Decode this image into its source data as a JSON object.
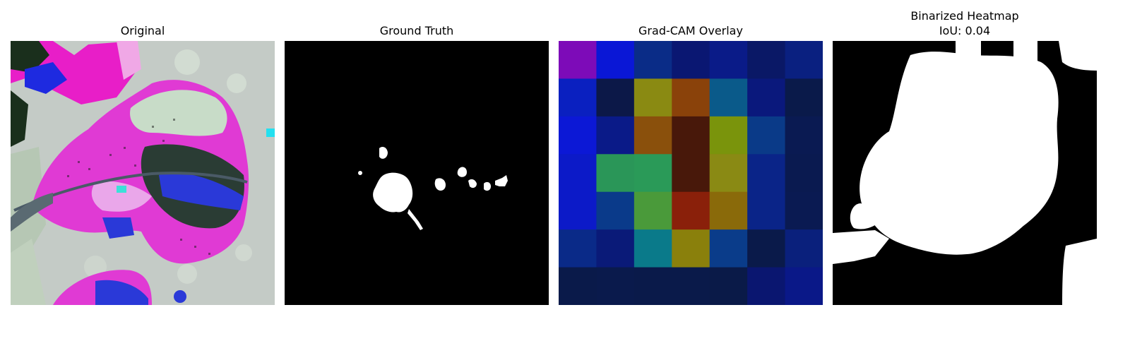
{
  "panels": [
    {
      "title": "Original",
      "subtitle": "",
      "image": "leaf-photo"
    },
    {
      "title": "Ground Truth",
      "subtitle": "",
      "image": "binary-mask"
    },
    {
      "title": "Grad-CAM Overlay",
      "subtitle": "",
      "image": "gradcam-heatmap-grid"
    },
    {
      "title": "Binarized Heatmap",
      "subtitle": "IoU: 0.04",
      "image": "binarized-mask"
    }
  ],
  "gradcam_grid": [
    [
      "#7d0bb8",
      "#0a17d6",
      "#0a2c87",
      "#0a1772",
      "#0a1b88",
      "#0a1866",
      "#0a2080"
    ],
    [
      "#0a20c0",
      "#0c1848",
      "#8a8a12",
      "#8a420a",
      "#0a5a8a",
      "#0a187c",
      "#0a1a4a"
    ],
    [
      "#0c18d6",
      "#0a1a88",
      "#8a500c",
      "#48180a",
      "#7a940c",
      "#0a3a88",
      "#0a1a52"
    ],
    [
      "#0c1ac8",
      "#2a9658",
      "#2a9a58",
      "#48180a",
      "#8a8a14",
      "#0a2488",
      "#0a1a50"
    ],
    [
      "#0c1ac8",
      "#0a3a8a",
      "#4a9a3a",
      "#8a200a",
      "#8a6a0a",
      "#0a2488",
      "#0a1a52"
    ],
    [
      "#0a2a88",
      "#0a1a78",
      "#0a7a8a",
      "#8a800c",
      "#0a3c8a",
      "#0a1a4a",
      "#0a207c"
    ],
    [
      "#0a1a4a",
      "#0a1a4c",
      "#0a1a4a",
      "#0a1a4a",
      "#0a1a48",
      "#0a1670",
      "#0a1888"
    ]
  ]
}
